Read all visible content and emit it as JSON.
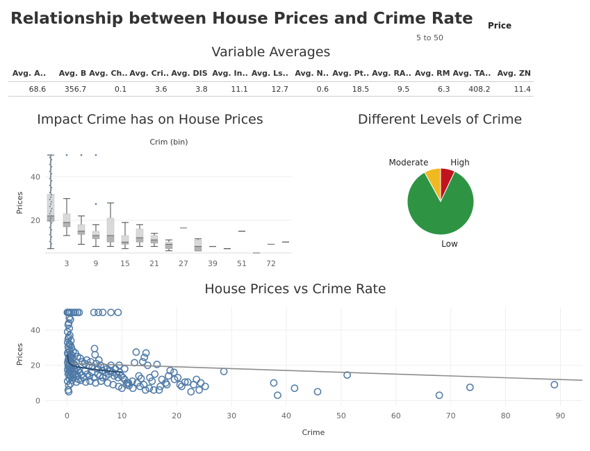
{
  "dashboard": {
    "title": "Relationship between House Prices and Crime Rate",
    "filter_title": "Price",
    "filter_range": "5 to 50"
  },
  "averages": {
    "title": "Variable Averages",
    "headers": [
      "Avg. A..",
      "Avg. B",
      "Avg. Ch..",
      "Avg. Cri..",
      "Avg. DIS",
      "Avg. In..",
      "Avg. Ls..",
      "Avg. N..",
      "Avg. Pt..",
      "Avg. RA..",
      "Avg. RM",
      "Avg. TA..",
      "Avg. ZN"
    ],
    "values": [
      "68.6",
      "356.7",
      "0.1",
      "3.6",
      "3.8",
      "11.1",
      "12.7",
      "0.6",
      "18.5",
      "9.5",
      "6.3",
      "408.2",
      "11.4"
    ]
  },
  "chart_data": [
    {
      "id": "box",
      "type": "box",
      "title": "Impact Crime has on House Prices",
      "xlabel": "Crim (bin)",
      "ylabel": "Prices",
      "tick_labels": [
        "3",
        "9",
        "15",
        "21",
        "27",
        "39",
        "51",
        "72"
      ],
      "yticks": [
        20,
        40
      ],
      "ylim": [
        5,
        51
      ],
      "grid": true,
      "boxes": [
        {
          "bin": 0,
          "min": 7,
          "q1": 19.5,
          "median": 22,
          "q3": 32,
          "max": 50
        },
        {
          "bin": 3,
          "min": 13,
          "q1": 17,
          "median": 19,
          "q3": 23,
          "max": 30
        },
        {
          "bin": 6,
          "min": 9,
          "q1": 13.5,
          "median": 15,
          "q3": 18,
          "max": 22
        },
        {
          "bin": 9,
          "min": 8,
          "q1": 11.5,
          "median": 13,
          "q3": 15,
          "max": 18
        },
        {
          "bin": 12,
          "min": 8,
          "q1": 10,
          "median": 13,
          "q3": 21,
          "max": 28
        },
        {
          "bin": 15,
          "min": 7,
          "q1": 9,
          "median": 10,
          "q3": 13,
          "max": 19
        },
        {
          "bin": 18,
          "min": 8,
          "q1": 10,
          "median": 12,
          "q3": 16,
          "max": 18
        },
        {
          "bin": 21,
          "min": 8,
          "q1": 9.5,
          "median": 11,
          "q3": 13,
          "max": 14
        },
        {
          "bin": 24,
          "min": 6,
          "q1": 7,
          "median": 9,
          "q3": 10,
          "max": 11
        },
        {
          "bin": 27,
          "min": 16.5,
          "q1": 16.5,
          "median": 16.5,
          "q3": 16.5,
          "max": 16.5
        },
        {
          "bin": 33,
          "min": 6,
          "q1": 6,
          "median": 8,
          "q3": 11,
          "max": 11.5
        },
        {
          "bin": 39,
          "min": 8,
          "q1": 8,
          "median": 8,
          "q3": 8,
          "max": 8
        },
        {
          "bin": 45,
          "min": 7,
          "q1": 7,
          "median": 7,
          "q3": 7,
          "max": 7
        },
        {
          "bin": 51,
          "min": 15,
          "q1": 15,
          "median": 15,
          "q3": 15,
          "max": 15
        },
        {
          "bin": 63,
          "min": 5,
          "q1": 5,
          "median": 5,
          "q3": 5,
          "max": 5
        },
        {
          "bin": 72,
          "min": 9,
          "q1": 9,
          "median": 9,
          "q3": 9,
          "max": 9
        },
        {
          "bin": 84,
          "min": 10,
          "q1": 10,
          "median": 10,
          "q3": 10,
          "max": 10
        }
      ],
      "outliers": [
        {
          "bin": 3,
          "value": 50
        },
        {
          "bin": 6,
          "value": 50
        },
        {
          "bin": 9,
          "value": 50
        },
        {
          "bin": 9,
          "value": 27.5
        }
      ]
    },
    {
      "id": "pie",
      "type": "pie",
      "title": "Different Levels of Crime",
      "slices": [
        {
          "label": "High",
          "value": 7,
          "color": "#c0141f"
        },
        {
          "label": "Low",
          "value": 85,
          "color": "#2e9444"
        },
        {
          "label": "Moderate",
          "value": 8,
          "color": "#f0b921"
        }
      ]
    },
    {
      "id": "scatter",
      "type": "scatter",
      "title": "House Prices vs Crime Rate",
      "xlabel": "Crime",
      "ylabel": "Prices",
      "xticks": [
        0,
        10,
        20,
        30,
        40,
        50,
        60,
        70,
        80,
        90
      ],
      "yticks": [
        0,
        20,
        40
      ],
      "xlim": [
        -4,
        94
      ],
      "ylim": [
        -3,
        53
      ],
      "grid": true,
      "trend_line": [
        [
          0,
          21.2
        ],
        [
          94,
          11.5
        ]
      ],
      "fit_curve": [
        [
          0.05,
          26
        ],
        [
          0.3,
          21.5
        ],
        [
          1,
          19.8
        ],
        [
          2,
          19
        ],
        [
          4,
          18.1
        ],
        [
          6,
          17.2
        ],
        [
          8,
          16.6
        ],
        [
          10,
          16.2
        ]
      ],
      "points": [
        [
          0.05,
          50
        ],
        [
          0.1,
          50
        ],
        [
          0.2,
          50
        ],
        [
          0.3,
          50
        ],
        [
          0.5,
          50
        ],
        [
          0.8,
          50
        ],
        [
          1.2,
          50
        ],
        [
          1.5,
          50
        ],
        [
          1.9,
          50
        ],
        [
          2.2,
          50
        ],
        [
          4.9,
          50
        ],
        [
          5.7,
          50
        ],
        [
          6.5,
          50
        ],
        [
          8.0,
          50
        ],
        [
          9.3,
          50
        ],
        [
          0.4,
          47
        ],
        [
          0.3,
          44
        ],
        [
          0.6,
          46
        ],
        [
          0.2,
          43
        ],
        [
          0.4,
          41
        ],
        [
          0.1,
          39
        ],
        [
          0.5,
          37
        ],
        [
          0.3,
          36
        ],
        [
          0.2,
          35
        ],
        [
          0.7,
          34
        ],
        [
          0.1,
          33
        ],
        [
          0.4,
          32
        ],
        [
          0.6,
          31.5
        ],
        [
          0.2,
          30.5
        ],
        [
          0.8,
          30
        ],
        [
          0.3,
          29
        ],
        [
          0.5,
          28
        ],
        [
          0.1,
          27
        ],
        [
          0.7,
          26.5
        ],
        [
          0.2,
          26
        ],
        [
          0.9,
          25.5
        ],
        [
          0.4,
          25
        ],
        [
          0.6,
          24.5
        ],
        [
          1.0,
          24
        ],
        [
          0.3,
          23.5
        ],
        [
          0.2,
          23
        ],
        [
          0.5,
          22.5
        ],
        [
          0.8,
          22
        ],
        [
          0.1,
          21.5
        ],
        [
          0.4,
          21
        ],
        [
          1.2,
          21
        ],
        [
          0.6,
          20.5
        ],
        [
          0.3,
          20
        ],
        [
          0.9,
          20
        ],
        [
          1.5,
          20
        ],
        [
          0.2,
          19.5
        ],
        [
          0.7,
          19
        ],
        [
          1.1,
          19
        ],
        [
          0.5,
          18.5
        ],
        [
          1.8,
          18.5
        ],
        [
          0.4,
          18
        ],
        [
          1.3,
          18
        ],
        [
          0.1,
          17.5
        ],
        [
          0.9,
          17.5
        ],
        [
          2.0,
          17
        ],
        [
          0.6,
          16.5
        ],
        [
          1.4,
          16.5
        ],
        [
          0.3,
          16
        ],
        [
          2.3,
          16
        ],
        [
          0.8,
          15.5
        ],
        [
          1.6,
          15
        ],
        [
          0.2,
          15
        ],
        [
          1.0,
          14.5
        ],
        [
          2.6,
          14.5
        ],
        [
          0.5,
          14
        ],
        [
          1.9,
          14
        ],
        [
          0.7,
          13.5
        ],
        [
          1.2,
          13
        ],
        [
          3.0,
          13
        ],
        [
          0.4,
          12.5
        ],
        [
          2.1,
          12
        ],
        [
          0.9,
          11.5
        ],
        [
          0.1,
          11
        ],
        [
          1.7,
          10.5
        ],
        [
          0.6,
          9.5
        ],
        [
          0.3,
          8.5
        ],
        [
          0.2,
          6
        ],
        [
          0.3,
          5
        ],
        [
          1.1,
          28
        ],
        [
          1.5,
          27
        ],
        [
          1.9,
          25
        ],
        [
          2.4,
          24
        ],
        [
          2.8,
          22
        ],
        [
          3.2,
          21
        ],
        [
          3.6,
          23
        ],
        [
          4.0,
          20
        ],
        [
          4.3,
          22
        ],
        [
          4.6,
          19
        ],
        [
          5.0,
          29.5
        ],
        [
          5.1,
          26
        ],
        [
          5.3,
          21
        ],
        [
          5.5,
          18
        ],
        [
          5.8,
          23
        ],
        [
          6.1,
          20
        ],
        [
          6.4,
          17
        ],
        [
          6.7,
          19
        ],
        [
          7.0,
          16
        ],
        [
          7.3,
          18
        ],
        [
          3.3,
          17
        ],
        [
          3.7,
          15
        ],
        [
          4.1,
          14
        ],
        [
          4.5,
          16
        ],
        [
          4.9,
          13
        ],
        [
          5.6,
          15
        ],
        [
          6.0,
          14
        ],
        [
          6.5,
          13
        ],
        [
          7.1,
          14
        ],
        [
          7.6,
          15
        ],
        [
          7.9,
          17
        ],
        [
          8.3,
          16
        ],
        [
          8.6,
          14
        ],
        [
          9.0,
          15
        ],
        [
          9.3,
          13
        ],
        [
          9.6,
          16
        ],
        [
          9.9,
          14
        ],
        [
          10.2,
          13
        ],
        [
          10.5,
          12
        ],
        [
          11.0,
          10
        ],
        [
          2.5,
          11.5
        ],
        [
          3.4,
          10.5
        ],
        [
          4.2,
          11
        ],
        [
          5.2,
          10
        ],
        [
          6.2,
          11
        ],
        [
          7.4,
          10
        ],
        [
          8.4,
          9
        ],
        [
          9.4,
          8
        ],
        [
          10.0,
          7
        ],
        [
          10.8,
          9
        ],
        [
          8.0,
          20
        ],
        [
          8.8,
          18
        ],
        [
          10.5,
          18
        ],
        [
          9.5,
          20
        ],
        [
          11.2,
          10
        ],
        [
          11.9,
          11
        ],
        [
          12.3,
          21.5
        ],
        [
          12.6,
          27.5
        ],
        [
          13.1,
          14
        ],
        [
          13.5,
          12.5
        ],
        [
          13.8,
          22
        ],
        [
          14.1,
          24.5
        ],
        [
          14.4,
          27
        ],
        [
          14.7,
          20
        ],
        [
          15.1,
          13
        ],
        [
          15.5,
          11
        ],
        [
          16.0,
          15
        ],
        [
          16.4,
          20.5
        ],
        [
          17.0,
          8
        ],
        [
          17.3,
          12
        ],
        [
          18.0,
          10
        ],
        [
          18.5,
          14
        ],
        [
          18.8,
          17
        ],
        [
          19.5,
          16
        ],
        [
          20.2,
          13
        ],
        [
          20.9,
          8
        ],
        [
          22.0,
          10.5
        ],
        [
          22.6,
          5
        ],
        [
          23.6,
          12
        ],
        [
          24.1,
          6
        ],
        [
          24.4,
          10
        ],
        [
          25.2,
          8
        ],
        [
          28.6,
          16.5
        ],
        [
          37.7,
          10
        ],
        [
          38.4,
          3
        ],
        [
          41.5,
          7
        ],
        [
          45.7,
          5
        ],
        [
          51.1,
          14.5
        ],
        [
          67.9,
          3
        ],
        [
          73.5,
          7.5
        ],
        [
          88.9,
          9
        ],
        [
          11.3,
          8.5
        ],
        [
          12.0,
          7
        ],
        [
          12.8,
          10
        ],
        [
          13.3,
          8
        ],
        [
          14.0,
          9
        ],
        [
          14.3,
          6
        ],
        [
          15.0,
          7
        ],
        [
          15.8,
          6
        ],
        [
          16.8,
          6
        ],
        [
          18.2,
          9
        ],
        [
          19.6,
          12
        ],
        [
          20.6,
          9
        ],
        [
          21.5,
          10.5
        ],
        [
          23.1,
          9
        ]
      ]
    }
  ]
}
